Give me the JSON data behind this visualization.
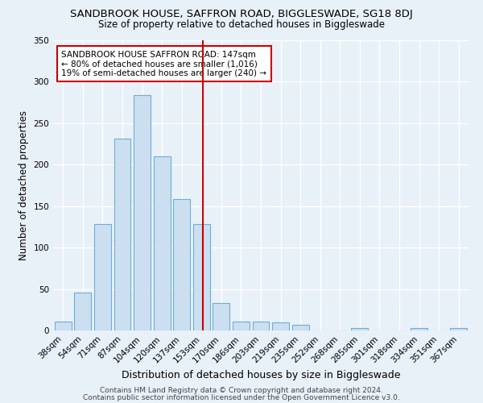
{
  "title": "SANDBROOK HOUSE, SAFFRON ROAD, BIGGLESWADE, SG18 8DJ",
  "subtitle": "Size of property relative to detached houses in Biggleswade",
  "xlabel": "Distribution of detached houses by size in Biggleswade",
  "ylabel": "Number of detached properties",
  "bar_labels": [
    "38sqm",
    "54sqm",
    "71sqm",
    "87sqm",
    "104sqm",
    "120sqm",
    "137sqm",
    "153sqm",
    "170sqm",
    "186sqm",
    "203sqm",
    "219sqm",
    "235sqm",
    "252sqm",
    "268sqm",
    "285sqm",
    "301sqm",
    "318sqm",
    "334sqm",
    "351sqm",
    "367sqm"
  ],
  "bar_values": [
    11,
    46,
    128,
    231,
    284,
    210,
    158,
    128,
    33,
    11,
    11,
    10,
    7,
    0,
    0,
    3,
    0,
    0,
    3,
    0,
    3
  ],
  "bar_color": "#ccdff0",
  "bar_edge_color": "#6aaed6",
  "vline_color": "#cc0000",
  "annotation_text": "SANDBROOK HOUSE SAFFRON ROAD: 147sqm\n← 80% of detached houses are smaller (1,016)\n19% of semi-detached houses are larger (240) →",
  "annotation_box_color": "#ffffff",
  "annotation_box_edge": "#cc0000",
  "ylim": [
    0,
    350
  ],
  "yticks": [
    0,
    50,
    100,
    150,
    200,
    250,
    300,
    350
  ],
  "background_color": "#e8f0f8",
  "grid_color": "#ffffff",
  "footer1": "Contains HM Land Registry data © Crown copyright and database right 2024.",
  "footer2": "Contains public sector information licensed under the Open Government Licence v3.0.",
  "title_fontsize": 9.5,
  "subtitle_fontsize": 8.5,
  "xlabel_fontsize": 9,
  "ylabel_fontsize": 8.5,
  "tick_fontsize": 7.5,
  "annotation_fontsize": 7.5,
  "footer_fontsize": 6.5
}
